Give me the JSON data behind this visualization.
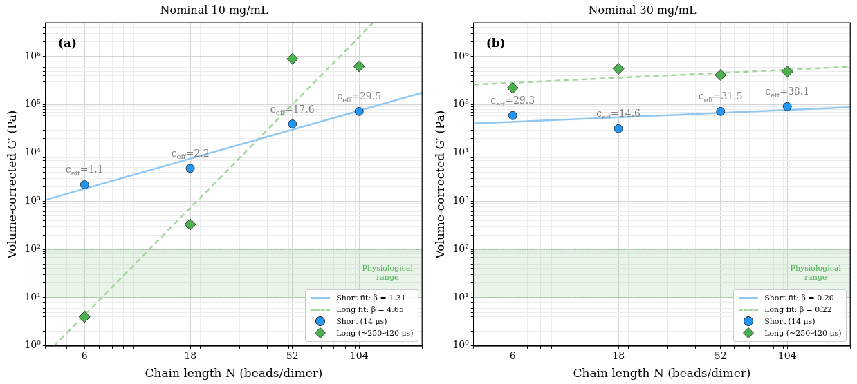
{
  "chart_data": [
    {
      "type": "scatter",
      "title": "Nominal 10 mg/mL",
      "xlabel": "Chain length N (beads/dimer)",
      "ylabel": "Volume-corrected G′ (Pa)",
      "log": "xy",
      "grid": true,
      "legend": "bottom right",
      "xlim": [
        4,
        200
      ],
      "xticks": [
        6,
        18,
        52,
        104
      ],
      "ylim": [
        1,
        5000000
      ],
      "yticks": [
        {
          "value": 1,
          "label": "10⁰"
        },
        {
          "value": 10,
          "label": "10¹"
        },
        {
          "value": 100,
          "label": "10²"
        },
        {
          "value": 1000,
          "label": "10³"
        },
        {
          "value": 10000,
          "label": "10⁴"
        },
        {
          "value": 100000,
          "label": "10⁵"
        },
        {
          "value": 1000000,
          "label": "10⁶"
        }
      ],
      "series": [
        {
          "name": "Short fit: β = 1.31",
          "type": "line",
          "color": "#90c8f4",
          "line_style": "solid",
          "marker": "none",
          "x": [
            4,
            200
          ],
          "values": [
            1070,
            178000
          ]
        },
        {
          "name": "Long fit: β = 4.65",
          "type": "line",
          "color": "#a3d69c",
          "line_style": "dashed",
          "marker": "none",
          "x": [
            4.37,
            120
          ],
          "values": [
            1,
            5000000
          ]
        },
        {
          "name": "Short (14 μs)",
          "color": "#2196f3",
          "marker": "circle",
          "x": [
            6,
            18,
            52,
            104
          ],
          "values": [
            2200,
            4800,
            40000,
            73000
          ]
        },
        {
          "name": "Long (~250-420 μs)",
          "color": "#4caf50",
          "marker": "diamond",
          "x": [
            6,
            18,
            52,
            104
          ],
          "values": [
            4,
            330,
            900000,
            630000
          ]
        }
      ],
      "bands": [
        {
          "axis": "y",
          "from": 10,
          "to": 100,
          "label": "Physiological range",
          "color": "#4caf50"
        }
      ],
      "annotations": [
        "(a)",
        {
          "text": "c$_{eff}$=1.1",
          "x": 6,
          "y": 2200
        },
        {
          "text": "c$_{eff}$=2.2",
          "x": 18,
          "y": 4800
        },
        {
          "text": "c$_{eff}$=17.6",
          "x": 52,
          "y": 40000
        },
        {
          "text": "c$_{eff}$=29.5",
          "x": 104,
          "y": 73000
        }
      ]
    },
    {
      "type": "scatter",
      "title": "Nominal 30 mg/mL",
      "xlabel": "Chain length N (beads/dimer)",
      "ylabel": "Volume-corrected G′ (Pa)",
      "log": "xy",
      "grid": true,
      "legend": "bottom right",
      "xlim": [
        4,
        200
      ],
      "xticks": [
        6,
        18,
        52,
        104
      ],
      "ylim": [
        1,
        5000000
      ],
      "yticks": [
        {
          "value": 1,
          "label": "10⁰"
        },
        {
          "value": 10,
          "label": "10¹"
        },
        {
          "value": 100,
          "label": "10²"
        },
        {
          "value": 1000,
          "label": "10³"
        },
        {
          "value": 10000,
          "label": "10⁴"
        },
        {
          "value": 100000,
          "label": "10⁵"
        },
        {
          "value": 1000000,
          "label": "10⁶"
        }
      ],
      "series": [
        {
          "name": "Short fit: β = 0.20",
          "type": "line",
          "color": "#90c8f4",
          "line_style": "solid",
          "marker": "none",
          "x": [
            4,
            200
          ],
          "values": [
            41000,
            89000
          ]
        },
        {
          "name": "Long fit: β = 0.22",
          "type": "line",
          "color": "#a3d69c",
          "line_style": "dashed",
          "marker": "none",
          "x": [
            4,
            200
          ],
          "values": [
            263000,
            617000
          ]
        },
        {
          "name": "Short (14 μs)",
          "color": "#2196f3",
          "marker": "circle",
          "x": [
            6,
            18,
            52,
            104
          ],
          "values": [
            60000,
            32000,
            73000,
            92000
          ]
        },
        {
          "name": "Long (~250-420 μs)",
          "color": "#4caf50",
          "marker": "diamond",
          "x": [
            6,
            18,
            52,
            104
          ],
          "values": [
            224000,
            560000,
            417000,
            490000
          ]
        }
      ],
      "bands": [
        {
          "axis": "y",
          "from": 10,
          "to": 100,
          "label": "Physiological range",
          "color": "#4caf50"
        }
      ],
      "annotations": [
        "(b)",
        {
          "text": "c$_{eff}$=29.3",
          "x": 6,
          "y": 60000
        },
        {
          "text": "c$_{eff}$=14.6",
          "x": 18,
          "y": 32000
        },
        {
          "text": "c$_{eff}$=31.5",
          "x": 52,
          "y": 73000
        },
        {
          "text": "c$_{eff}$=38.1",
          "x": 104,
          "y": 92000
        }
      ]
    }
  ]
}
